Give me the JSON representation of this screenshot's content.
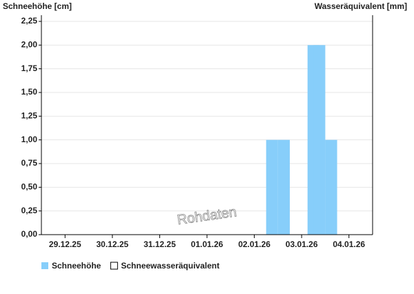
{
  "chart_data": {
    "type": "bar",
    "y_axis_label": "Schneehöhe [cm]",
    "y2_axis_label": "Wasseräquivalent [mm]",
    "watermark": "Rohdaten",
    "xlim": [
      0,
      7
    ],
    "xticks": [
      {
        "value": 0.5,
        "label": "29.12.25"
      },
      {
        "value": 1.5,
        "label": "30.12.25"
      },
      {
        "value": 2.5,
        "label": "31.12.25"
      },
      {
        "value": 3.5,
        "label": "01.01.26"
      },
      {
        "value": 4.5,
        "label": "02.01.26"
      },
      {
        "value": 5.5,
        "label": "03.01.26"
      },
      {
        "value": 6.5,
        "label": "04.01.26"
      }
    ],
    "ylim": [
      0,
      2.25
    ],
    "yticks": [
      {
        "value": 0,
        "label": "0,00"
      },
      {
        "value": 0.25,
        "label": "0,25"
      },
      {
        "value": 0.5,
        "label": "0,50"
      },
      {
        "value": 0.75,
        "label": "0,75"
      },
      {
        "value": 1,
        "label": "1,00"
      },
      {
        "value": 1.25,
        "label": "1,25"
      },
      {
        "value": 1.5,
        "label": "1,50"
      },
      {
        "value": 1.75,
        "label": "1,75"
      },
      {
        "value": 2,
        "label": "2,00"
      },
      {
        "value": 2.25,
        "label": "2,25"
      }
    ],
    "grid": true,
    "bar_width": 0.25,
    "series": [
      {
        "name": "Schneehöhe",
        "color": "#87cefa",
        "x": [
          4.75,
          5.0,
          5.625,
          5.75,
          6.0
        ],
        "values": [
          1,
          1,
          2,
          2,
          1
        ]
      },
      {
        "name": "Schneewasseräquivalent",
        "color": "#ffffff",
        "x": [],
        "values": []
      }
    ]
  }
}
